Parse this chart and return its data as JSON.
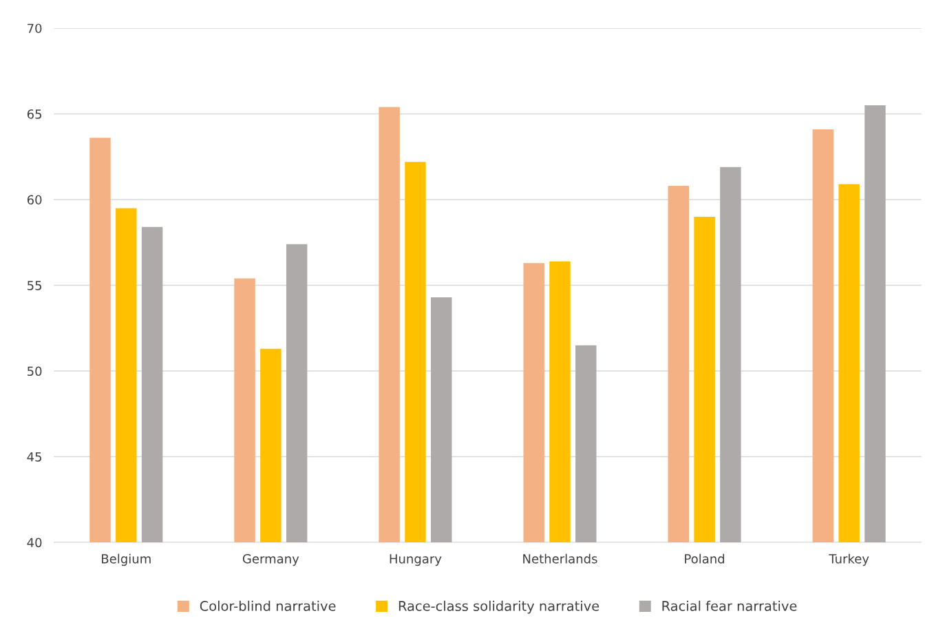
{
  "chart_data": {
    "type": "bar",
    "categories": [
      "Belgium",
      "Germany",
      "Hungary",
      "Netherlands",
      "Poland",
      "Turkey"
    ],
    "series": [
      {
        "name": "Color-blind narrative",
        "color": "#f4b183",
        "values": [
          63.6,
          55.4,
          65.4,
          56.3,
          60.8,
          64.1
        ]
      },
      {
        "name": "Race-class solidarity narrative",
        "color": "#ffc000",
        "values": [
          59.5,
          51.3,
          62.2,
          56.4,
          59.0,
          60.9
        ]
      },
      {
        "name": "Racial fear narrative",
        "color": "#aeaaaa",
        "values": [
          58.4,
          57.4,
          54.3,
          51.5,
          61.9,
          65.5
        ]
      }
    ],
    "ylim": [
      40,
      70
    ],
    "yticks": [
      40,
      45,
      50,
      55,
      60,
      65,
      70
    ],
    "grid": "y",
    "legend": "bottom"
  }
}
